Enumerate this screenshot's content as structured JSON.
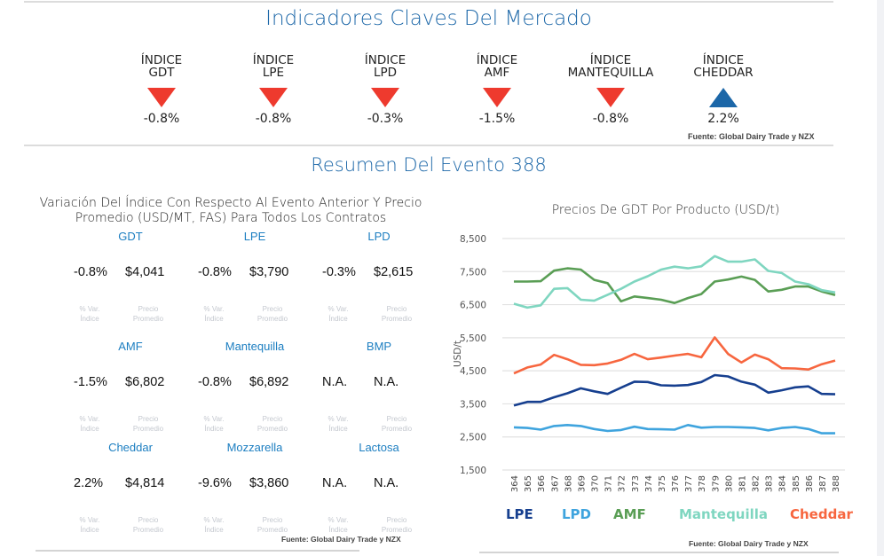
{
  "header": {
    "title": "Indicadores Claves Del Mercado",
    "indicators": [
      {
        "label1": "ÍNDICE",
        "label2": "GDT",
        "direction": "down",
        "change": "-0.8%"
      },
      {
        "label1": "ÍNDICE",
        "label2": "LPE",
        "direction": "down",
        "change": "-0.8%"
      },
      {
        "label1": "ÍNDICE",
        "label2": "LPD",
        "direction": "down",
        "change": "-0.3%"
      },
      {
        "label1": "ÍNDICE",
        "label2": "AMF",
        "direction": "down",
        "change": "-1.5%"
      },
      {
        "label1": "ÍNDICE",
        "label2": "MANTEQUILLA",
        "direction": "down",
        "change": "-0.8%"
      },
      {
        "label1": "ÍNDICE",
        "label2": "CHEDDAR",
        "direction": "up",
        "change": "2.2%"
      }
    ],
    "source": "Fuente: Global Dairy Trade y NZX",
    "colors": {
      "down": "#ee3a2e",
      "up": "#1c67a8",
      "title": "#1c67a8"
    }
  },
  "summary": {
    "title": "Resumen Del Evento 388",
    "left_heading_line1": "Variación Del Índice Con Respecto Al Evento Anterior Y Precio",
    "left_heading_line2": "Promedio (USD/MT, FAS) Para Todos Los Contratos",
    "caption_var_1": "% Var.",
    "caption_var_2": "Índice",
    "caption_price_1": "Precio",
    "caption_price_2": "Promedio",
    "products": [
      {
        "name": "GDT",
        "change": "-0.8%",
        "price": "$4,041"
      },
      {
        "name": "LPE",
        "change": "-0.8%",
        "price": "$3,790"
      },
      {
        "name": "LPD",
        "change": "-0.3%",
        "price": "$2,615"
      },
      {
        "name": "AMF",
        "change": "-1.5%",
        "price": "$6,802"
      },
      {
        "name": "Mantequilla",
        "change": "-0.8%",
        "price": "$6,892"
      },
      {
        "name": "BMP",
        "change": "N.A.",
        "price": "N.A."
      },
      {
        "name": "Cheddar",
        "change": "2.2%",
        "price": "$4,814"
      },
      {
        "name": "Mozzarella",
        "change": "-9.6%",
        "price": "$3,860"
      },
      {
        "name": "Lactosa",
        "change": "N.A.",
        "price": "N.A."
      }
    ],
    "source_left": "Fuente:  Global Dairy Trade y NZX",
    "source_right": "Fuente:  Global Dairy Trade y NZX"
  },
  "chart_data": {
    "type": "line",
    "title": "Precios De GDT Por Producto (USD/t)",
    "xlabel": "",
    "ylabel": "USD/t",
    "ylim": [
      1500,
      8500
    ],
    "yticks": [
      1500,
      2500,
      3500,
      4500,
      5500,
      6500,
      7500,
      8500
    ],
    "ytick_labels": [
      "1,500",
      "2,500",
      "3,500",
      "4,500",
      "5,500",
      "6,500",
      "7,500",
      "8,500"
    ],
    "grid": true,
    "legend_position": "bottom",
    "x": [
      "364",
      "365",
      "366",
      "367",
      "368",
      "369",
      "370",
      "371",
      "372",
      "373",
      "374",
      "375",
      "376",
      "377",
      "378",
      "379",
      "380",
      "381",
      "382",
      "383",
      "384",
      "385",
      "386",
      "387",
      "388"
    ],
    "series": [
      {
        "name": "LPE",
        "color": "#163f8f",
        "values": [
          3450,
          3560,
          3560,
          3700,
          3820,
          3970,
          3880,
          3800,
          3990,
          4170,
          4160,
          4060,
          4050,
          4070,
          4160,
          4370,
          4330,
          4170,
          4080,
          3840,
          3910,
          4000,
          4030,
          3800,
          3790
        ]
      },
      {
        "name": "LPD",
        "color": "#3fa4de",
        "values": [
          2790,
          2770,
          2720,
          2830,
          2860,
          2830,
          2740,
          2680,
          2710,
          2810,
          2740,
          2730,
          2720,
          2860,
          2780,
          2800,
          2800,
          2790,
          2770,
          2700,
          2770,
          2800,
          2740,
          2610,
          2610
        ]
      },
      {
        "name": "AMF",
        "color": "#5a9e55",
        "values": [
          7200,
          7200,
          7210,
          7530,
          7600,
          7560,
          7250,
          7150,
          6600,
          6750,
          6700,
          6650,
          6550,
          6700,
          6820,
          7200,
          7260,
          7350,
          7250,
          6900,
          6950,
          7050,
          7050,
          6900,
          6790
        ]
      },
      {
        "name": "Mantequilla",
        "color": "#7fd6c0",
        "values": [
          6530,
          6410,
          6480,
          6980,
          7000,
          6650,
          6620,
          6800,
          6980,
          7200,
          7360,
          7560,
          7650,
          7600,
          7660,
          7970,
          7800,
          7800,
          7870,
          7520,
          7460,
          7200,
          7120,
          6940,
          6870
        ]
      },
      {
        "name": "Cheddar",
        "color": "#f7663f",
        "values": [
          4420,
          4600,
          4690,
          4980,
          4850,
          4680,
          4670,
          4720,
          4830,
          5010,
          4850,
          4900,
          4960,
          5010,
          4910,
          5510,
          5010,
          4750,
          4990,
          4850,
          4580,
          4570,
          4540,
          4700,
          4810
        ]
      }
    ]
  }
}
